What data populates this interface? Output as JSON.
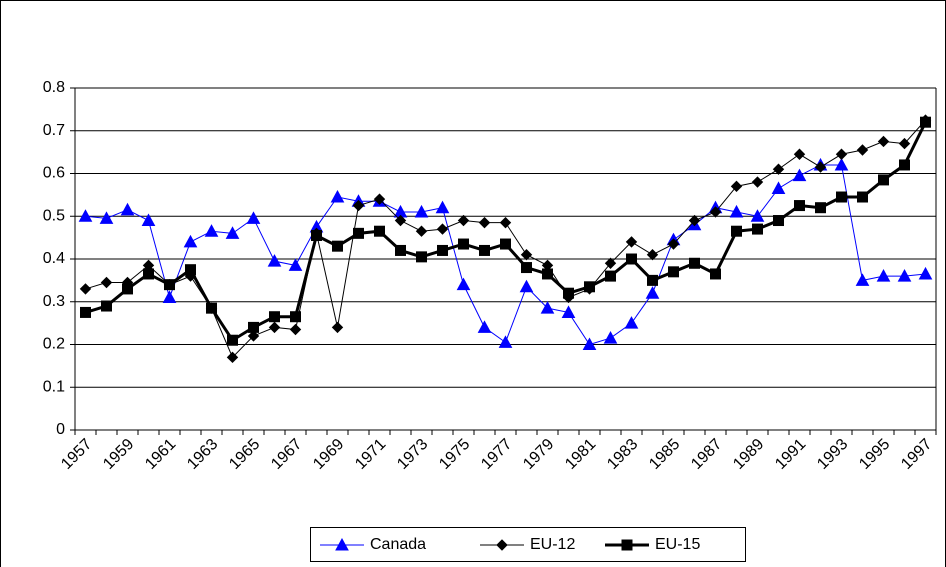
{
  "chart_data": {
    "type": "line",
    "categories": [
      "1957",
      null,
      "1959",
      null,
      "1961",
      null,
      "1963",
      null,
      "1965",
      null,
      "1967",
      null,
      "1969",
      null,
      "1971",
      null,
      "1973",
      null,
      "1975",
      null,
      "1977",
      null,
      "1979",
      null,
      "1981",
      null,
      "1983",
      null,
      "1985",
      null,
      "1987",
      null,
      "1989",
      null,
      "1991",
      null,
      "1993",
      null,
      "1995",
      null,
      "1997"
    ],
    "series": [
      {
        "name": "Canada",
        "color": "#0000ff",
        "marker": "triangle",
        "line_width": 1,
        "values": [
          0.5,
          0.495,
          0.515,
          0.49,
          0.31,
          0.44,
          0.465,
          0.46,
          0.495,
          0.395,
          0.385,
          0.475,
          0.545,
          0.535,
          0.535,
          0.51,
          0.51,
          0.52,
          0.34,
          0.24,
          0.205,
          0.335,
          0.285,
          0.275,
          0.2,
          0.215,
          0.25,
          0.32,
          0.445,
          0.48,
          0.52,
          0.51,
          0.5,
          0.565,
          0.595,
          0.62,
          0.62,
          0.35,
          0.36,
          0.36,
          0.365
        ]
      },
      {
        "name": "EU-12",
        "color": "#000000",
        "marker": "diamond",
        "line_width": 1,
        "values": [
          0.33,
          0.345,
          0.345,
          0.385,
          0.34,
          0.36,
          0.285,
          0.17,
          0.22,
          0.24,
          0.235,
          0.46,
          0.24,
          0.525,
          0.54,
          0.49,
          0.465,
          0.47,
          0.49,
          0.485,
          0.485,
          0.41,
          0.385,
          0.31,
          0.33,
          0.39,
          0.44,
          0.41,
          0.435,
          0.49,
          0.51,
          0.57,
          0.58,
          0.61,
          0.645,
          0.615,
          0.645,
          0.655,
          0.675,
          0.67,
          0.725
        ]
      },
      {
        "name": "EU-15",
        "color": "#000000",
        "marker": "square",
        "line_width": 3,
        "values": [
          0.275,
          0.29,
          0.33,
          0.365,
          0.34,
          0.375,
          0.285,
          0.21,
          0.24,
          0.265,
          0.265,
          0.455,
          0.43,
          0.46,
          0.465,
          0.42,
          0.405,
          0.42,
          0.435,
          0.42,
          0.435,
          0.38,
          0.365,
          0.32,
          0.335,
          0.36,
          0.4,
          0.35,
          0.37,
          0.39,
          0.365,
          0.465,
          0.47,
          0.49,
          0.525,
          0.52,
          0.545,
          0.545,
          0.585,
          0.62,
          0.72
        ]
      }
    ],
    "ylim": [
      0,
      0.8
    ],
    "yticks": [
      0,
      0.1,
      0.2,
      0.3,
      0.4,
      0.5,
      0.6,
      0.7,
      0.8
    ],
    "grid": true,
    "legend": "bottom"
  }
}
